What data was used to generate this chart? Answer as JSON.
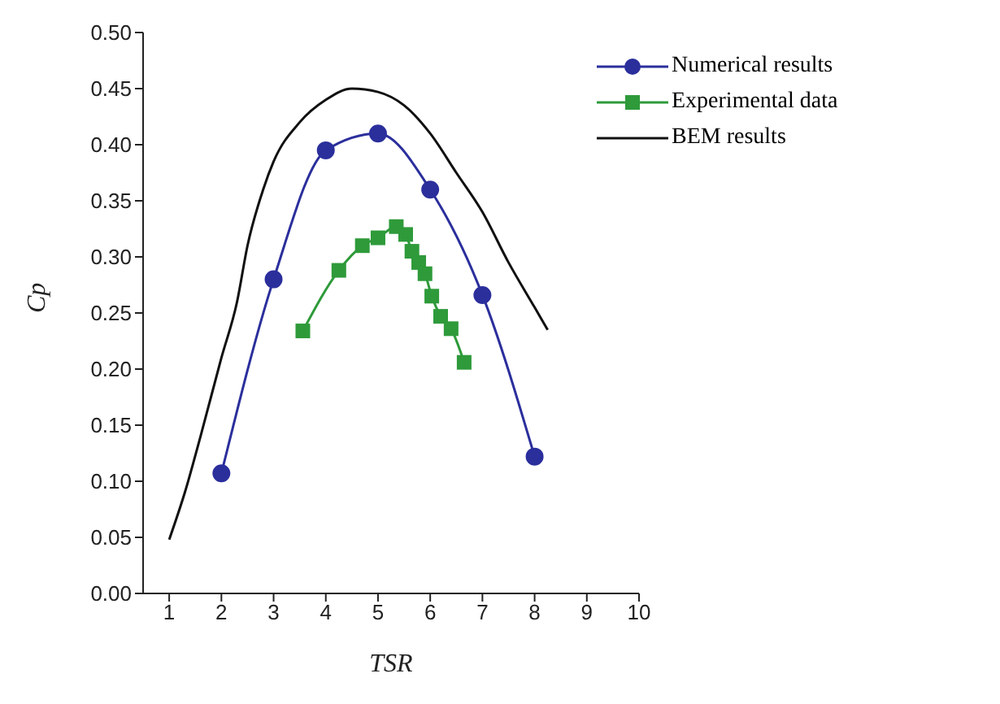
{
  "chart_data": {
    "type": "line",
    "xlabel": "TSR",
    "ylabel": "Cp",
    "xlim": [
      0.5,
      10
    ],
    "xticks": [
      1,
      2,
      3,
      4,
      5,
      6,
      7,
      8,
      9,
      10
    ],
    "ylim": [
      0,
      0.5
    ],
    "yticks": [
      {
        "value": 0,
        "label": "0.00"
      },
      {
        "value": 0.05,
        "label": "0.05"
      },
      {
        "value": 0.1,
        "label": "0.10"
      },
      {
        "value": 0.15,
        "label": "0.15"
      },
      {
        "value": 0.2,
        "label": "0.20"
      },
      {
        "value": 0.25,
        "label": "0.25"
      },
      {
        "value": 0.3,
        "label": "0.30"
      },
      {
        "value": 0.35,
        "label": "0.35"
      },
      {
        "value": 0.4,
        "label": "0.40"
      },
      {
        "value": 0.45,
        "label": "0.45"
      },
      {
        "value": 0.5,
        "label": "0.50"
      }
    ],
    "grid": false,
    "legend": "top right",
    "line_style": "solid",
    "series": [
      {
        "name": "Numerical results",
        "color": "#2b2f9c",
        "marker": "circle",
        "x": [
          2,
          3,
          4,
          5,
          6,
          7,
          8
        ],
        "values": [
          0.107,
          0.28,
          0.395,
          0.41,
          0.36,
          0.266,
          0.122
        ]
      },
      {
        "name": "Experimental data",
        "color": "#2e9a3a",
        "marker": "square",
        "x": [
          3.56,
          4.25,
          4.7,
          5.0,
          5.35,
          5.53,
          5.65,
          5.78,
          5.9,
          6.03,
          6.2,
          6.4,
          6.65
        ],
        "values": [
          0.234,
          0.288,
          0.31,
          0.317,
          0.327,
          0.32,
          0.305,
          0.295,
          0.285,
          0.265,
          0.247,
          0.236,
          0.206
        ]
      },
      {
        "name": "BEM results",
        "color": "#111111",
        "marker": "none",
        "x": [
          1,
          1.3,
          1.6,
          2,
          2.3,
          2.5,
          2.8,
          3,
          3.5,
          4,
          4.5,
          5,
          5.5,
          6,
          6.5,
          7,
          7.5,
          8,
          8.25
        ],
        "values": [
          0.048,
          0.09,
          0.14,
          0.21,
          0.26,
          0.31,
          0.36,
          0.385,
          0.42,
          0.44,
          0.45,
          0.447,
          0.435,
          0.41,
          0.375,
          0.34,
          0.295,
          0.255,
          0.235
        ]
      }
    ]
  }
}
